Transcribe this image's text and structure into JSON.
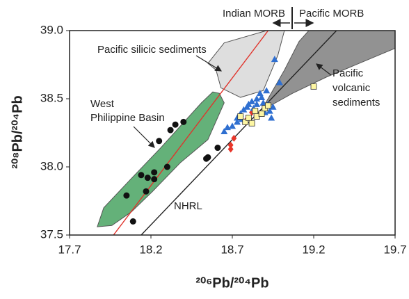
{
  "chart_data": {
    "type": "scatter",
    "x_label": "²⁰⁶Pb/²⁰⁴Pb",
    "y_label": "²⁰⁸Pb/²⁰⁴Pb",
    "xlim": [
      17.7,
      19.7
    ],
    "ylim": [
      37.5,
      39.0
    ],
    "xticks": [
      17.7,
      18.2,
      18.7,
      19.2,
      19.7
    ],
    "yticks": [
      {
        "value": 37.5,
        "label": "37.5"
      },
      {
        "value": 38,
        "label": "38.0"
      },
      {
        "value": 38.5,
        "label": "38.5"
      },
      {
        "value": 39,
        "label": "39.0"
      }
    ],
    "regions": [
      {
        "color": "#5cad72",
        "x": [
          17.87,
          17.91,
          18.06,
          18.26,
          18.51,
          18.58,
          18.62,
          18.65,
          18.55,
          18.38,
          18.21,
          18.08,
          17.96
        ],
        "y": [
          37.56,
          37.7,
          37.89,
          38.14,
          38.47,
          38.55,
          38.54,
          38.47,
          38.2,
          38.03,
          37.82,
          37.67,
          37.57
        ]
      },
      {
        "color": "#dcdcdc",
        "x": [
          18.55,
          18.65,
          18.91,
          19.02,
          18.98,
          18.89,
          18.75,
          18.63,
          18.6
        ],
        "y": [
          38.76,
          38.91,
          39.0,
          39.0,
          38.82,
          38.56,
          38.51,
          38.58,
          38.71
        ]
      },
      {
        "color": "#8c8c8c",
        "x": [
          18.9,
          19.02,
          19.11,
          19.17,
          19.7,
          19.7,
          19.28,
          19.07,
          18.92
        ],
        "y": [
          38.46,
          38.71,
          38.92,
          39.0,
          39.0,
          38.87,
          38.66,
          38.54,
          38.44
        ]
      }
    ],
    "lines": [
      {
        "color": "#e0332b",
        "x": [
          17.97,
          18.92
        ],
        "y": [
          37.5,
          39.0
        ]
      },
      {
        "color": "#222222",
        "x": [
          18.14,
          19.34
        ],
        "y": [
          37.5,
          39.0
        ]
      }
    ],
    "series": [
      {
        "marker": "circle",
        "color": "#111111",
        "x": [
          18.05,
          18.09,
          18.14,
          18.18,
          18.17,
          18.22,
          18.22,
          18.3,
          18.25,
          18.32,
          18.35,
          18.4,
          18.54,
          18.55,
          18.61
        ],
        "y": [
          37.79,
          37.6,
          37.94,
          37.92,
          37.82,
          37.96,
          37.91,
          38.0,
          38.19,
          38.27,
          38.31,
          38.33,
          38.06,
          38.07,
          38.14
        ]
      },
      {
        "marker": "diamond",
        "color": "#e8362a",
        "x": [
          18.69,
          18.69,
          18.71,
          18.78,
          18.79,
          18.82
        ],
        "y": [
          38.16,
          38.13,
          38.21,
          38.33,
          38.35,
          38.4
        ]
      },
      {
        "marker": "triangle",
        "color": "#2f6fd0",
        "x": [
          18.65,
          18.67,
          18.7,
          18.73,
          18.73,
          18.75,
          18.76,
          18.77,
          18.79,
          18.8,
          18.82,
          18.83,
          18.85,
          18.85,
          18.87,
          18.88,
          18.89,
          18.91,
          18.92,
          18.9,
          18.93,
          18.94,
          18.95,
          18.96,
          18.99
        ],
        "y": [
          38.26,
          38.29,
          38.3,
          38.33,
          38.36,
          38.39,
          38.35,
          38.42,
          38.44,
          38.46,
          38.48,
          38.43,
          38.46,
          38.5,
          38.54,
          38.51,
          38.47,
          38.56,
          38.46,
          38.4,
          38.41,
          38.36,
          38.44,
          38.79,
          38.62
        ]
      },
      {
        "marker": "square",
        "color": "#fdf6a3",
        "x": [
          18.75,
          18.78,
          18.8,
          18.82,
          18.84,
          18.85,
          18.88,
          18.9,
          18.92,
          19.2
        ],
        "y": [
          38.37,
          38.33,
          38.36,
          38.32,
          38.41,
          38.37,
          38.39,
          38.43,
          38.45,
          38.59
        ]
      }
    ],
    "annotations": [
      "Indian MORB",
      "Pacific MORB",
      "Pacific silicic sediments",
      "West",
      "Philippine Basin",
      "Pacific",
      "volcanic",
      "sediments",
      "NHRL"
    ]
  }
}
